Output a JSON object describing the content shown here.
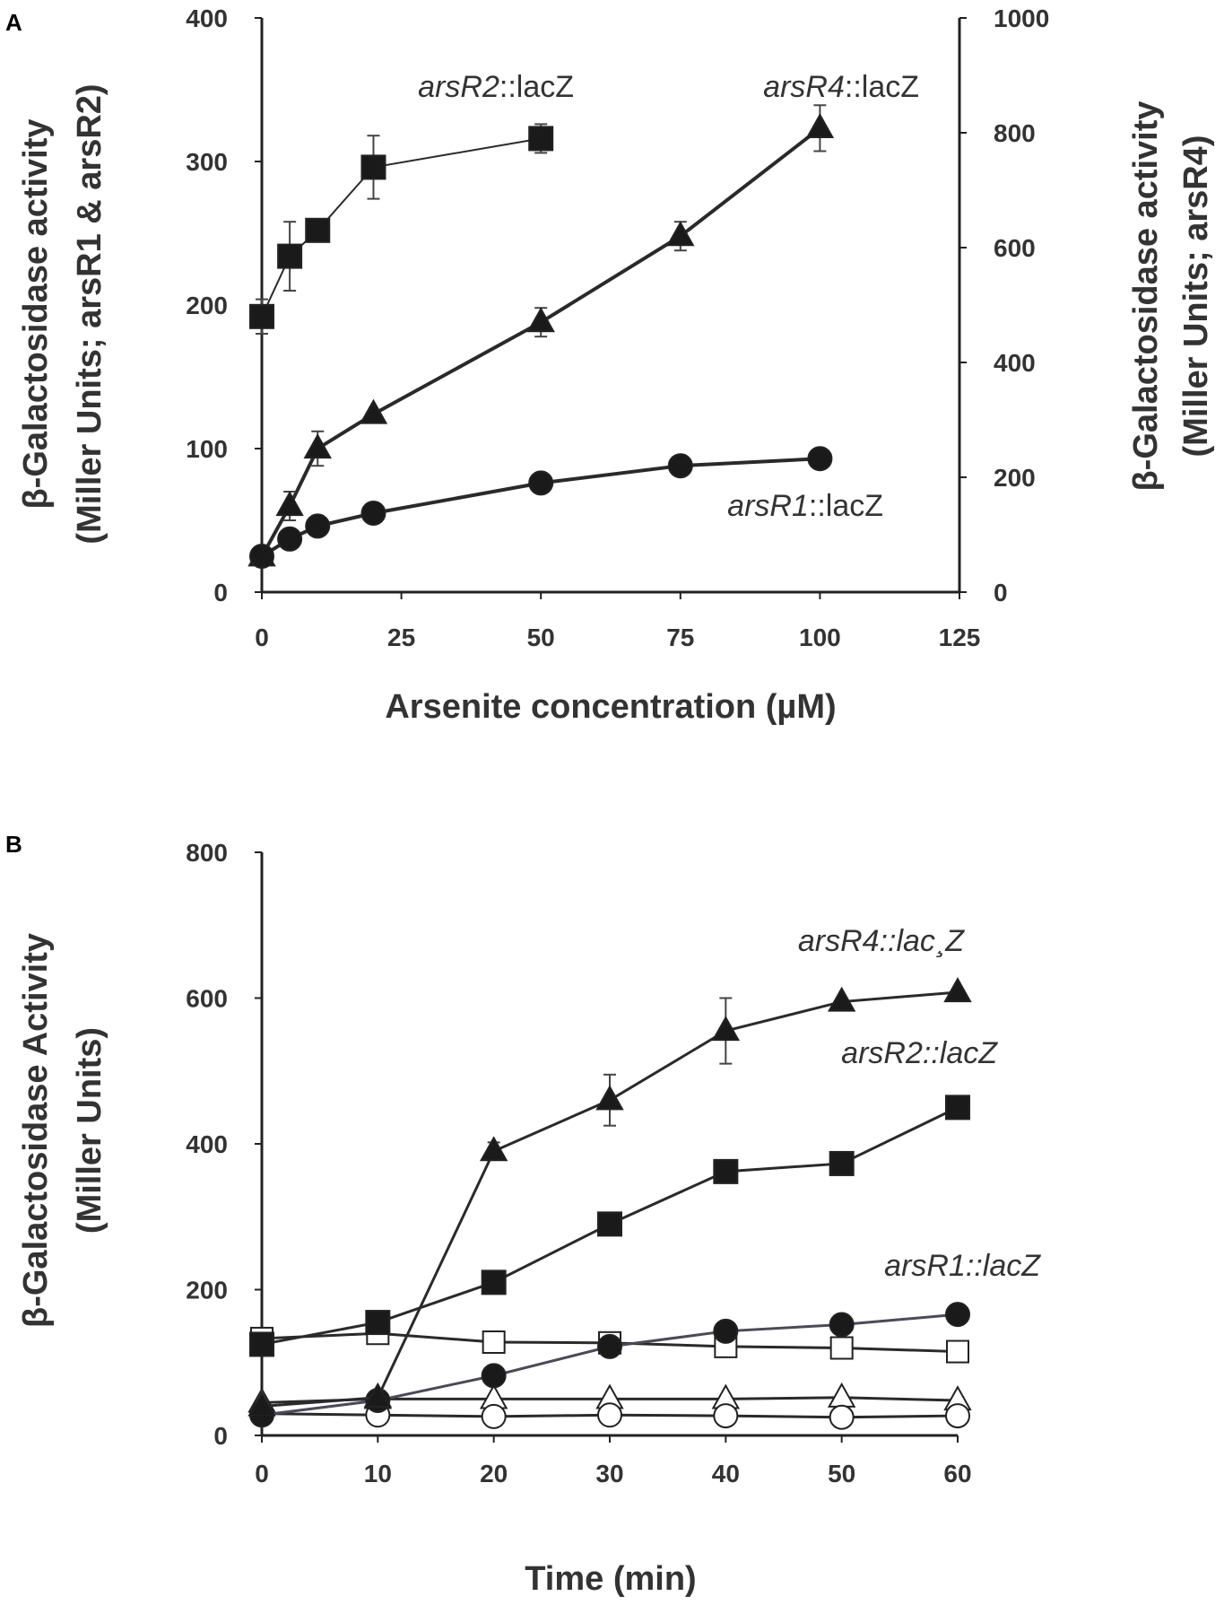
{
  "chart_data": [
    {
      "panel": "A",
      "type": "line",
      "xlabel": "Arsenite concentration (µM)",
      "ylabel_left": [
        "β-Galactosidase activity",
        "(Miller Units; arsR1 & arsR2)"
      ],
      "ylabel_right": [
        "β-Galactosidase activity",
        "(Miller Units; arsR4)"
      ],
      "xlim": [
        0,
        125
      ],
      "ylim_left": [
        0,
        400
      ],
      "ylim_right": [
        0,
        1000
      ],
      "xticks": [
        0,
        25,
        50,
        75,
        100,
        125
      ],
      "yticks_left": [
        0,
        100,
        200,
        300,
        400
      ],
      "yticks_right": [
        0,
        200,
        400,
        600,
        800,
        1000
      ],
      "series": [
        {
          "name": "arsR2::lacZ",
          "label_italic": "arsR2",
          "label_rest": "::lacZ",
          "axis": "left",
          "marker": "square",
          "x": [
            0,
            5,
            10,
            20,
            50
          ],
          "y": [
            192,
            234,
            252,
            296,
            316
          ],
          "err": [
            12,
            24,
            0,
            22,
            10
          ]
        },
        {
          "name": "arsR4::lacZ",
          "label_italic": "arsR4",
          "label_rest": "::lacZ",
          "axis": "right",
          "marker": "triangle",
          "x": [
            0,
            5,
            10,
            20,
            50,
            75,
            100
          ],
          "y": [
            62,
            150,
            250,
            310,
            470,
            620,
            808
          ],
          "err": [
            0,
            25,
            30,
            0,
            25,
            25,
            40
          ]
        },
        {
          "name": "arsR1::lacZ",
          "label_italic": "arsR1",
          "label_rest": "::lacZ",
          "axis": "left",
          "marker": "circle",
          "x": [
            0,
            5,
            10,
            20,
            50,
            75,
            100
          ],
          "y": [
            25,
            37,
            46,
            55,
            76,
            88,
            93
          ],
          "err": [
            0,
            0,
            0,
            0,
            0,
            0,
            0
          ]
        }
      ]
    },
    {
      "panel": "B",
      "type": "line",
      "xlabel": "Time (min)",
      "ylabel": [
        "β-Galactosidase Activity",
        "(Miller Units)"
      ],
      "xlim": [
        0,
        60
      ],
      "ylim": [
        0,
        800
      ],
      "xticks": [
        0,
        10,
        20,
        30,
        40,
        50,
        60
      ],
      "yticks": [
        0,
        200,
        400,
        600,
        800
      ],
      "series": [
        {
          "name": "arsR4::lac¸Z",
          "label_italic": "arsR4::lac¸Z",
          "marker": "triangle",
          "filled": true,
          "x": [
            0,
            10,
            20,
            30,
            40,
            50,
            60
          ],
          "y": [
            40,
            52,
            390,
            460,
            555,
            595,
            608
          ],
          "err": [
            0,
            0,
            12,
            35,
            45,
            0,
            0
          ]
        },
        {
          "name": "arsR2::lacZ",
          "label_italic": "arsR2::lacZ",
          "marker": "square",
          "filled": true,
          "x": [
            0,
            10,
            20,
            30,
            40,
            50,
            60
          ],
          "y": [
            125,
            155,
            210,
            290,
            362,
            373,
            450
          ],
          "err": [
            0,
            0,
            0,
            0,
            0,
            0,
            0
          ]
        },
        {
          "name": "arsR1::lacZ",
          "label_italic": "arsR1::lacZ",
          "marker": "circle",
          "filled": true,
          "x": [
            0,
            10,
            20,
            30,
            40,
            50,
            60
          ],
          "y": [
            28,
            48,
            82,
            122,
            143,
            152,
            166
          ],
          "err": [
            0,
            0,
            0,
            0,
            0,
            0,
            0
          ]
        },
        {
          "name": "open-square-control",
          "marker": "square",
          "filled": false,
          "x": [
            0,
            10,
            20,
            30,
            40,
            50,
            60
          ],
          "y": [
            133,
            140,
            128,
            127,
            122,
            120,
            115
          ],
          "err": [
            0,
            0,
            0,
            0,
            0,
            0,
            0
          ]
        },
        {
          "name": "open-triangle-control",
          "marker": "triangle",
          "filled": false,
          "x": [
            0,
            10,
            20,
            30,
            40,
            50,
            60
          ],
          "y": [
            45,
            50,
            50,
            50,
            50,
            52,
            48
          ],
          "err": [
            0,
            0,
            0,
            0,
            0,
            0,
            0
          ]
        },
        {
          "name": "open-circle-control",
          "marker": "circle",
          "filled": false,
          "x": [
            0,
            10,
            20,
            30,
            40,
            50,
            60
          ],
          "y": [
            30,
            28,
            26,
            28,
            27,
            25,
            27
          ],
          "err": [
            0,
            0,
            0,
            0,
            0,
            0,
            0
          ]
        }
      ]
    }
  ]
}
